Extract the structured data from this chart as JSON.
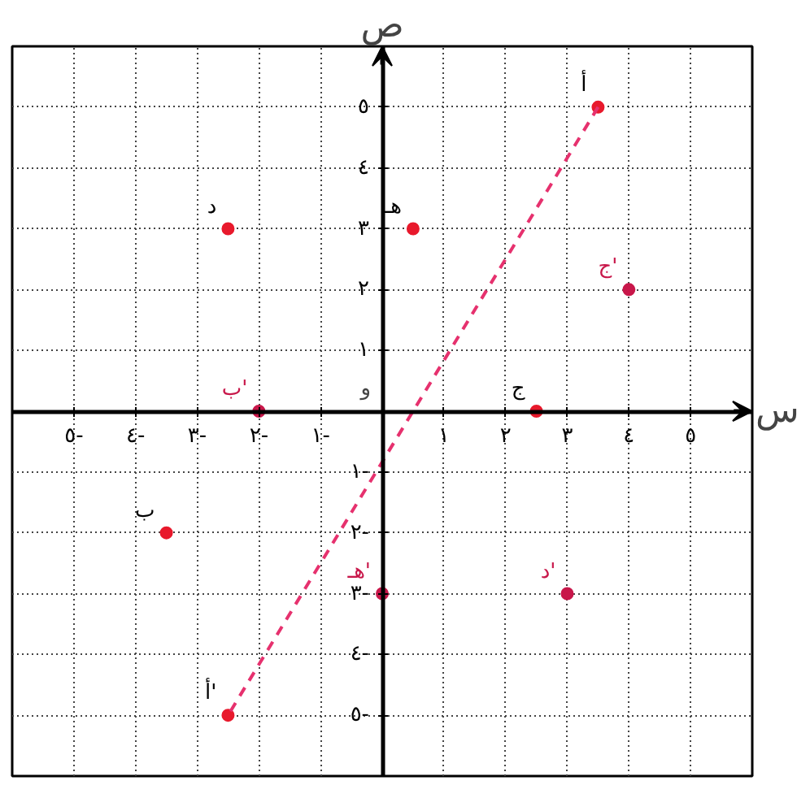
{
  "chart_data": {
    "type": "scatter",
    "xlabel": "س",
    "ylabel": "ص",
    "xlim": [
      -6,
      6
    ],
    "ylim": [
      -6,
      6
    ],
    "xticks": [
      {
        "value": -5,
        "label": "٥-"
      },
      {
        "value": -4,
        "label": "٤-"
      },
      {
        "value": -3,
        "label": "٣-"
      },
      {
        "value": -2,
        "label": "٢-"
      },
      {
        "value": -1,
        "label": "١-"
      },
      {
        "value": 1,
        "label": "١"
      },
      {
        "value": 2,
        "label": "٢"
      },
      {
        "value": 3,
        "label": "٣"
      },
      {
        "value": 4,
        "label": "٤"
      },
      {
        "value": 5,
        "label": "٥"
      }
    ],
    "yticks": [
      {
        "value": -5,
        "label": "٥-"
      },
      {
        "value": -4,
        "label": "٤-"
      },
      {
        "value": -3,
        "label": "٣-"
      },
      {
        "value": -2,
        "label": "٢-"
      },
      {
        "value": -1,
        "label": "١-"
      },
      {
        "value": 1,
        "label": "١"
      },
      {
        "value": 2,
        "label": "٢"
      },
      {
        "value": 3,
        "label": "٣"
      },
      {
        "value": 4,
        "label": "٤"
      },
      {
        "value": 5,
        "label": "٥"
      }
    ],
    "grid": true,
    "marker": "circle",
    "series": [
      {
        "color": "#e8192c",
        "x": [
          3.5,
          -2.5,
          -2.5,
          0.5,
          -3.5,
          2.5
        ],
        "values": [
          5,
          -5,
          3,
          3,
          -2,
          0
        ]
      },
      {
        "color": "#c8174a",
        "x": [
          -2,
          0,
          3,
          4
        ],
        "values": [
          0,
          -3,
          -3,
          2
        ]
      },
      {
        "type": "line",
        "marker": "none",
        "line_style": "dashed",
        "color": "#e6316e",
        "x": [
          3.5,
          -2.5
        ],
        "values": [
          5,
          -5
        ]
      }
    ],
    "annotations": [
      {
        "text": "أ",
        "x": 3.5,
        "y": 5
      },
      {
        "text": "أ'",
        "x": -2.5,
        "y": -5
      },
      {
        "text": "د",
        "x": -2.5,
        "y": 3
      },
      {
        "text": "هـ",
        "x": 0.5,
        "y": 3
      },
      {
        "text": "ب",
        "x": -3.5,
        "y": -2
      },
      {
        "text": "ج",
        "x": 2.5,
        "y": 0
      },
      "و",
      {
        "text": "ب'",
        "x": -2,
        "y": 0
      },
      {
        "text": "هـ'",
        "x": 0,
        "y": -3
      },
      {
        "text": "د'",
        "x": 3,
        "y": -3
      },
      {
        "text": "ج'",
        "x": 4,
        "y": 2
      }
    ]
  }
}
